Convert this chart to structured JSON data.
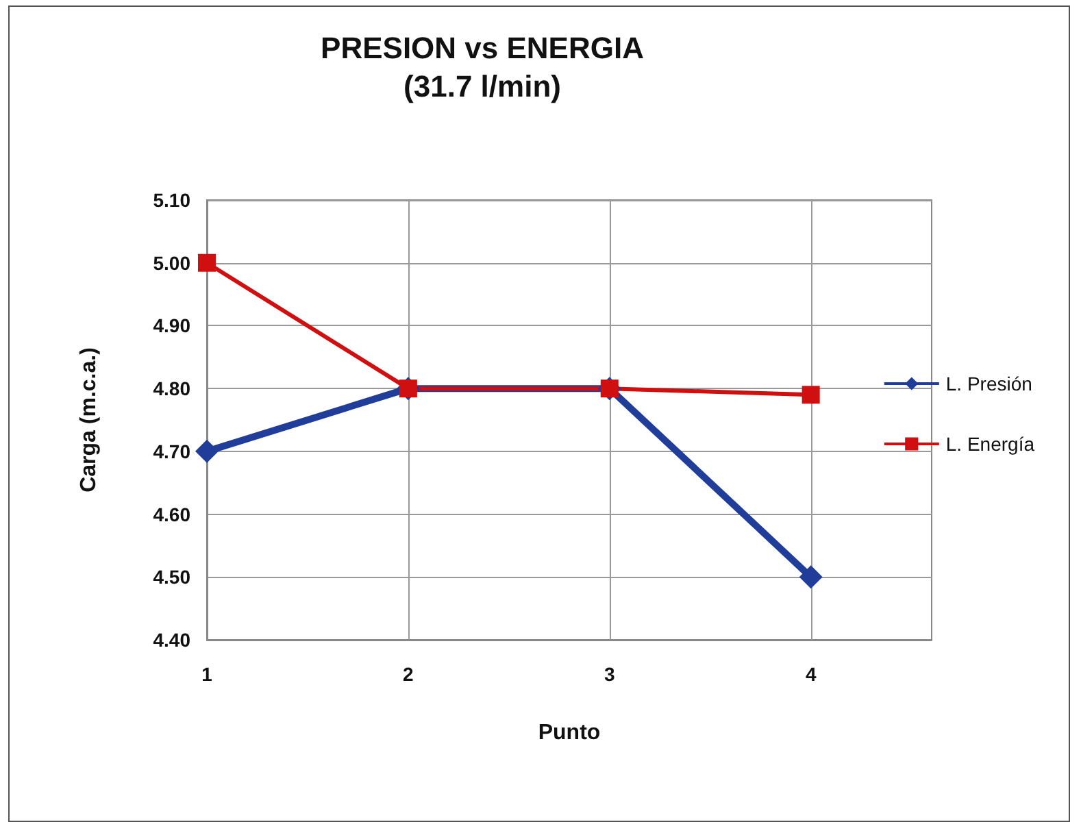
{
  "chart_data": {
    "type": "line",
    "title": "PRESION vs ENERGIA",
    "subtitle": "(31.7 l/min)",
    "xlabel": "Punto",
    "ylabel": "Carga (m.c.a.)",
    "x": [
      1,
      2,
      3,
      4
    ],
    "series": [
      {
        "name": "L. Presión",
        "color": "#1f3d99",
        "marker": "diamond",
        "values": [
          4.7,
          4.8,
          4.8,
          4.5
        ]
      },
      {
        "name": "L. Energía",
        "color": "#d01010",
        "marker": "square",
        "values": [
          5.0,
          4.8,
          4.8,
          4.79
        ]
      }
    ],
    "xlim": [
      1,
      4.6
    ],
    "xticks": [
      1,
      2,
      3,
      4
    ],
    "ylim": [
      4.4,
      5.1
    ],
    "yticks": [
      {
        "value": 4.4,
        "label": "4.40"
      },
      {
        "value": 4.5,
        "label": "4.50"
      },
      {
        "value": 4.6,
        "label": "4.60"
      },
      {
        "value": 4.7,
        "label": "4.70"
      },
      {
        "value": 4.8,
        "label": "4.80"
      },
      {
        "value": 4.9,
        "label": "4.90"
      },
      {
        "value": 5.0,
        "label": "5.00"
      },
      {
        "value": 5.1,
        "label": "5.10"
      }
    ],
    "grid": true,
    "legend": "right",
    "line_style": "solid"
  }
}
